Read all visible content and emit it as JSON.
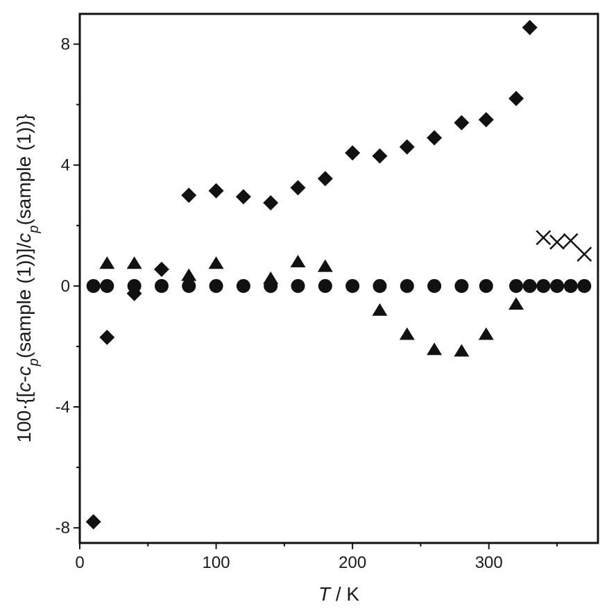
{
  "chart_data": {
    "type": "scatter",
    "title": "",
    "xlabel_parts": [
      {
        "text": "T",
        "italic": true,
        "sub": false
      },
      {
        "text": " / K",
        "italic": false,
        "sub": false
      }
    ],
    "ylabel_parts": [
      {
        "text": "100·{[",
        "italic": false,
        "sub": false
      },
      {
        "text": "c",
        "italic": true,
        "sub": false
      },
      {
        "text": "-",
        "italic": false,
        "sub": false
      },
      {
        "text": "c",
        "italic": true,
        "sub": false
      },
      {
        "text": "p",
        "italic": true,
        "sub": true
      },
      {
        "text": "(sample (1))]/",
        "italic": false,
        "sub": false
      },
      {
        "text": "c",
        "italic": true,
        "sub": false
      },
      {
        "text": "p",
        "italic": true,
        "sub": true
      },
      {
        "text": "(sample (1))}",
        "italic": false,
        "sub": false
      }
    ],
    "xlim": [
      0,
      380
    ],
    "ylim": [
      -8.5,
      9
    ],
    "x_ticks": [
      {
        "value": 0,
        "label": "0"
      },
      {
        "value": 100,
        "label": "100"
      },
      {
        "value": 200,
        "label": "200"
      },
      {
        "value": 300,
        "label": "300"
      }
    ],
    "x_minor_ticks": [
      50,
      150,
      250,
      350
    ],
    "y_ticks": [
      {
        "value": -8,
        "label": "-8"
      },
      {
        "value": -4,
        "label": "-4"
      },
      {
        "value": 0,
        "label": "0"
      },
      {
        "value": 4,
        "label": "4"
      },
      {
        "value": 8,
        "label": "8"
      }
    ],
    "y_minor_ticks": [
      -6,
      -2,
      2,
      6
    ],
    "grid": false,
    "legend": "none",
    "series": [
      {
        "marker": "diamond",
        "color": "#111111",
        "points": [
          [
            10,
            -7.8
          ],
          [
            20,
            -1.7
          ],
          [
            40,
            -0.25
          ],
          [
            60,
            0.55
          ],
          [
            80,
            3.0
          ],
          [
            100,
            3.15
          ],
          [
            120,
            2.95
          ],
          [
            140,
            2.75
          ],
          [
            160,
            3.25
          ],
          [
            180,
            3.55
          ],
          [
            200,
            4.4
          ],
          [
            220,
            4.3
          ],
          [
            240,
            4.6
          ],
          [
            260,
            4.9
          ],
          [
            280,
            5.4
          ],
          [
            298,
            5.5
          ],
          [
            320,
            6.2
          ],
          [
            330,
            8.55
          ]
        ]
      },
      {
        "marker": "triangle",
        "color": "#111111",
        "points": [
          [
            20,
            0.75
          ],
          [
            40,
            0.75
          ],
          [
            80,
            0.35
          ],
          [
            100,
            0.75
          ],
          [
            140,
            0.25
          ],
          [
            160,
            0.8
          ],
          [
            180,
            0.65
          ],
          [
            220,
            -0.8
          ],
          [
            240,
            -1.6
          ],
          [
            260,
            -2.1
          ],
          [
            280,
            -2.15
          ],
          [
            298,
            -1.6
          ],
          [
            320,
            -0.6
          ]
        ]
      },
      {
        "marker": "circle",
        "color": "#111111",
        "points": [
          [
            10,
            0
          ],
          [
            20,
            0
          ],
          [
            40,
            0
          ],
          [
            60,
            0
          ],
          [
            80,
            0
          ],
          [
            100,
            0
          ],
          [
            120,
            0
          ],
          [
            140,
            0
          ],
          [
            160,
            0
          ],
          [
            180,
            0
          ],
          [
            200,
            0
          ],
          [
            220,
            0
          ],
          [
            240,
            0
          ],
          [
            260,
            0
          ],
          [
            280,
            0
          ],
          [
            298,
            0
          ],
          [
            320,
            0
          ],
          [
            330,
            0
          ],
          [
            340,
            0
          ],
          [
            350,
            0
          ],
          [
            360,
            0
          ],
          [
            370,
            0
          ]
        ]
      },
      {
        "marker": "cross",
        "color": "#111111",
        "points": [
          [
            340,
            1.6
          ],
          [
            350,
            1.45
          ],
          [
            360,
            1.5
          ],
          [
            370,
            1.05
          ]
        ]
      }
    ]
  }
}
